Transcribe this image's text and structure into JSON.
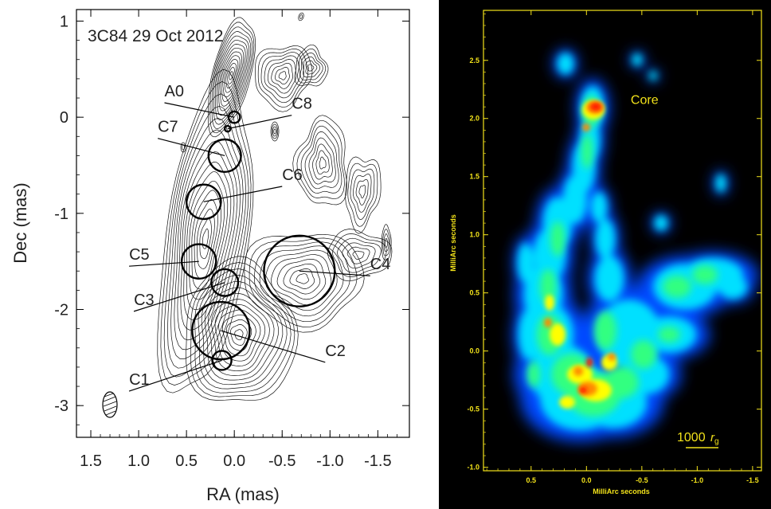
{
  "chart_data": [
    {
      "type": "scatter",
      "title": "3C84  29 Oct 2012",
      "xlabel": "RA (mas)",
      "ylabel": "Dec (mas)",
      "xlim": [
        1.65,
        -1.83
      ],
      "ylim": [
        -3.33,
        1.12
      ],
      "x_ticks": [
        "1.5",
        "1.0",
        "0.5",
        "0.0",
        "-0.5",
        "-1.0",
        "-1.5"
      ],
      "x_tick_values": [
        1.5,
        1.0,
        0.5,
        0.0,
        -0.5,
        -1.0,
        -1.5
      ],
      "y_ticks": [
        "1",
        "0",
        "-1",
        "-2",
        "-3"
      ],
      "y_tick_values": [
        1,
        0,
        -1,
        -2,
        -3
      ],
      "grid": false,
      "components": [
        {
          "name": "A0",
          "x": 0.0,
          "y": 0.0,
          "r": 0.06,
          "lx": 0.73,
          "ly": 0.2
        },
        {
          "name": "C8",
          "x": 0.07,
          "y": -0.12,
          "r": 0.03,
          "lx": -0.6,
          "ly": 0.07
        },
        {
          "name": "C7",
          "x": 0.1,
          "y": -0.4,
          "r": 0.17,
          "lx": 0.8,
          "ly": -0.17
        },
        {
          "name": "C6",
          "x": 0.32,
          "y": -0.88,
          "r": 0.18,
          "lx": -0.5,
          "ly": -0.67
        },
        {
          "name": "C5",
          "x": 0.37,
          "y": -1.5,
          "r": 0.18,
          "lx": 1.1,
          "ly": -1.5
        },
        {
          "name": "C3",
          "x": 0.1,
          "y": -1.72,
          "r": 0.14,
          "lx": 1.05,
          "ly": -1.97
        },
        {
          "name": "C2",
          "x": 0.14,
          "y": -2.22,
          "r": 0.3,
          "lx": -0.95,
          "ly": -2.5
        },
        {
          "name": "C4",
          "x": -0.68,
          "y": -1.6,
          "r": 0.37,
          "lx": -1.42,
          "ly": -1.6
        },
        {
          "name": "C1",
          "x": 0.13,
          "y": -2.53,
          "r": 0.1,
          "lx": 1.1,
          "ly": -2.8
        }
      ]
    },
    {
      "type": "heatmap",
      "xlabel": "MilliArc seconds",
      "ylabel": "MilliArc seconds",
      "xlim": [
        0.93,
        -1.58
      ],
      "ylim": [
        -1.03,
        2.93
      ],
      "x_ticks": [
        "0.5",
        "0.0",
        "-0.5",
        "-1.0",
        "-1.5"
      ],
      "x_tick_values": [
        0.5,
        0.0,
        -0.5,
        -1.0,
        -1.5
      ],
      "y_ticks": [
        "2.5",
        "2.0",
        "1.5",
        "1.0",
        "0.5",
        "0.0",
        "-0.5",
        "-1.0"
      ],
      "y_tick_values": [
        2.5,
        2.0,
        1.5,
        1.0,
        0.5,
        0.0,
        -0.5,
        -1.0
      ],
      "annotation": "Core",
      "annotation_x": -0.4,
      "annotation_y": 2.22,
      "scalebar_label": "1000",
      "scalebar_unit": "r",
      "scalebar_sub": "g",
      "background": "#000000",
      "frame_color": "#f2e21a",
      "colormap": [
        "#000070",
        "#0048ff",
        "#00e0ff",
        "#30ff80",
        "#ffff00",
        "#ff8a00",
        "#ff1800"
      ]
    }
  ]
}
